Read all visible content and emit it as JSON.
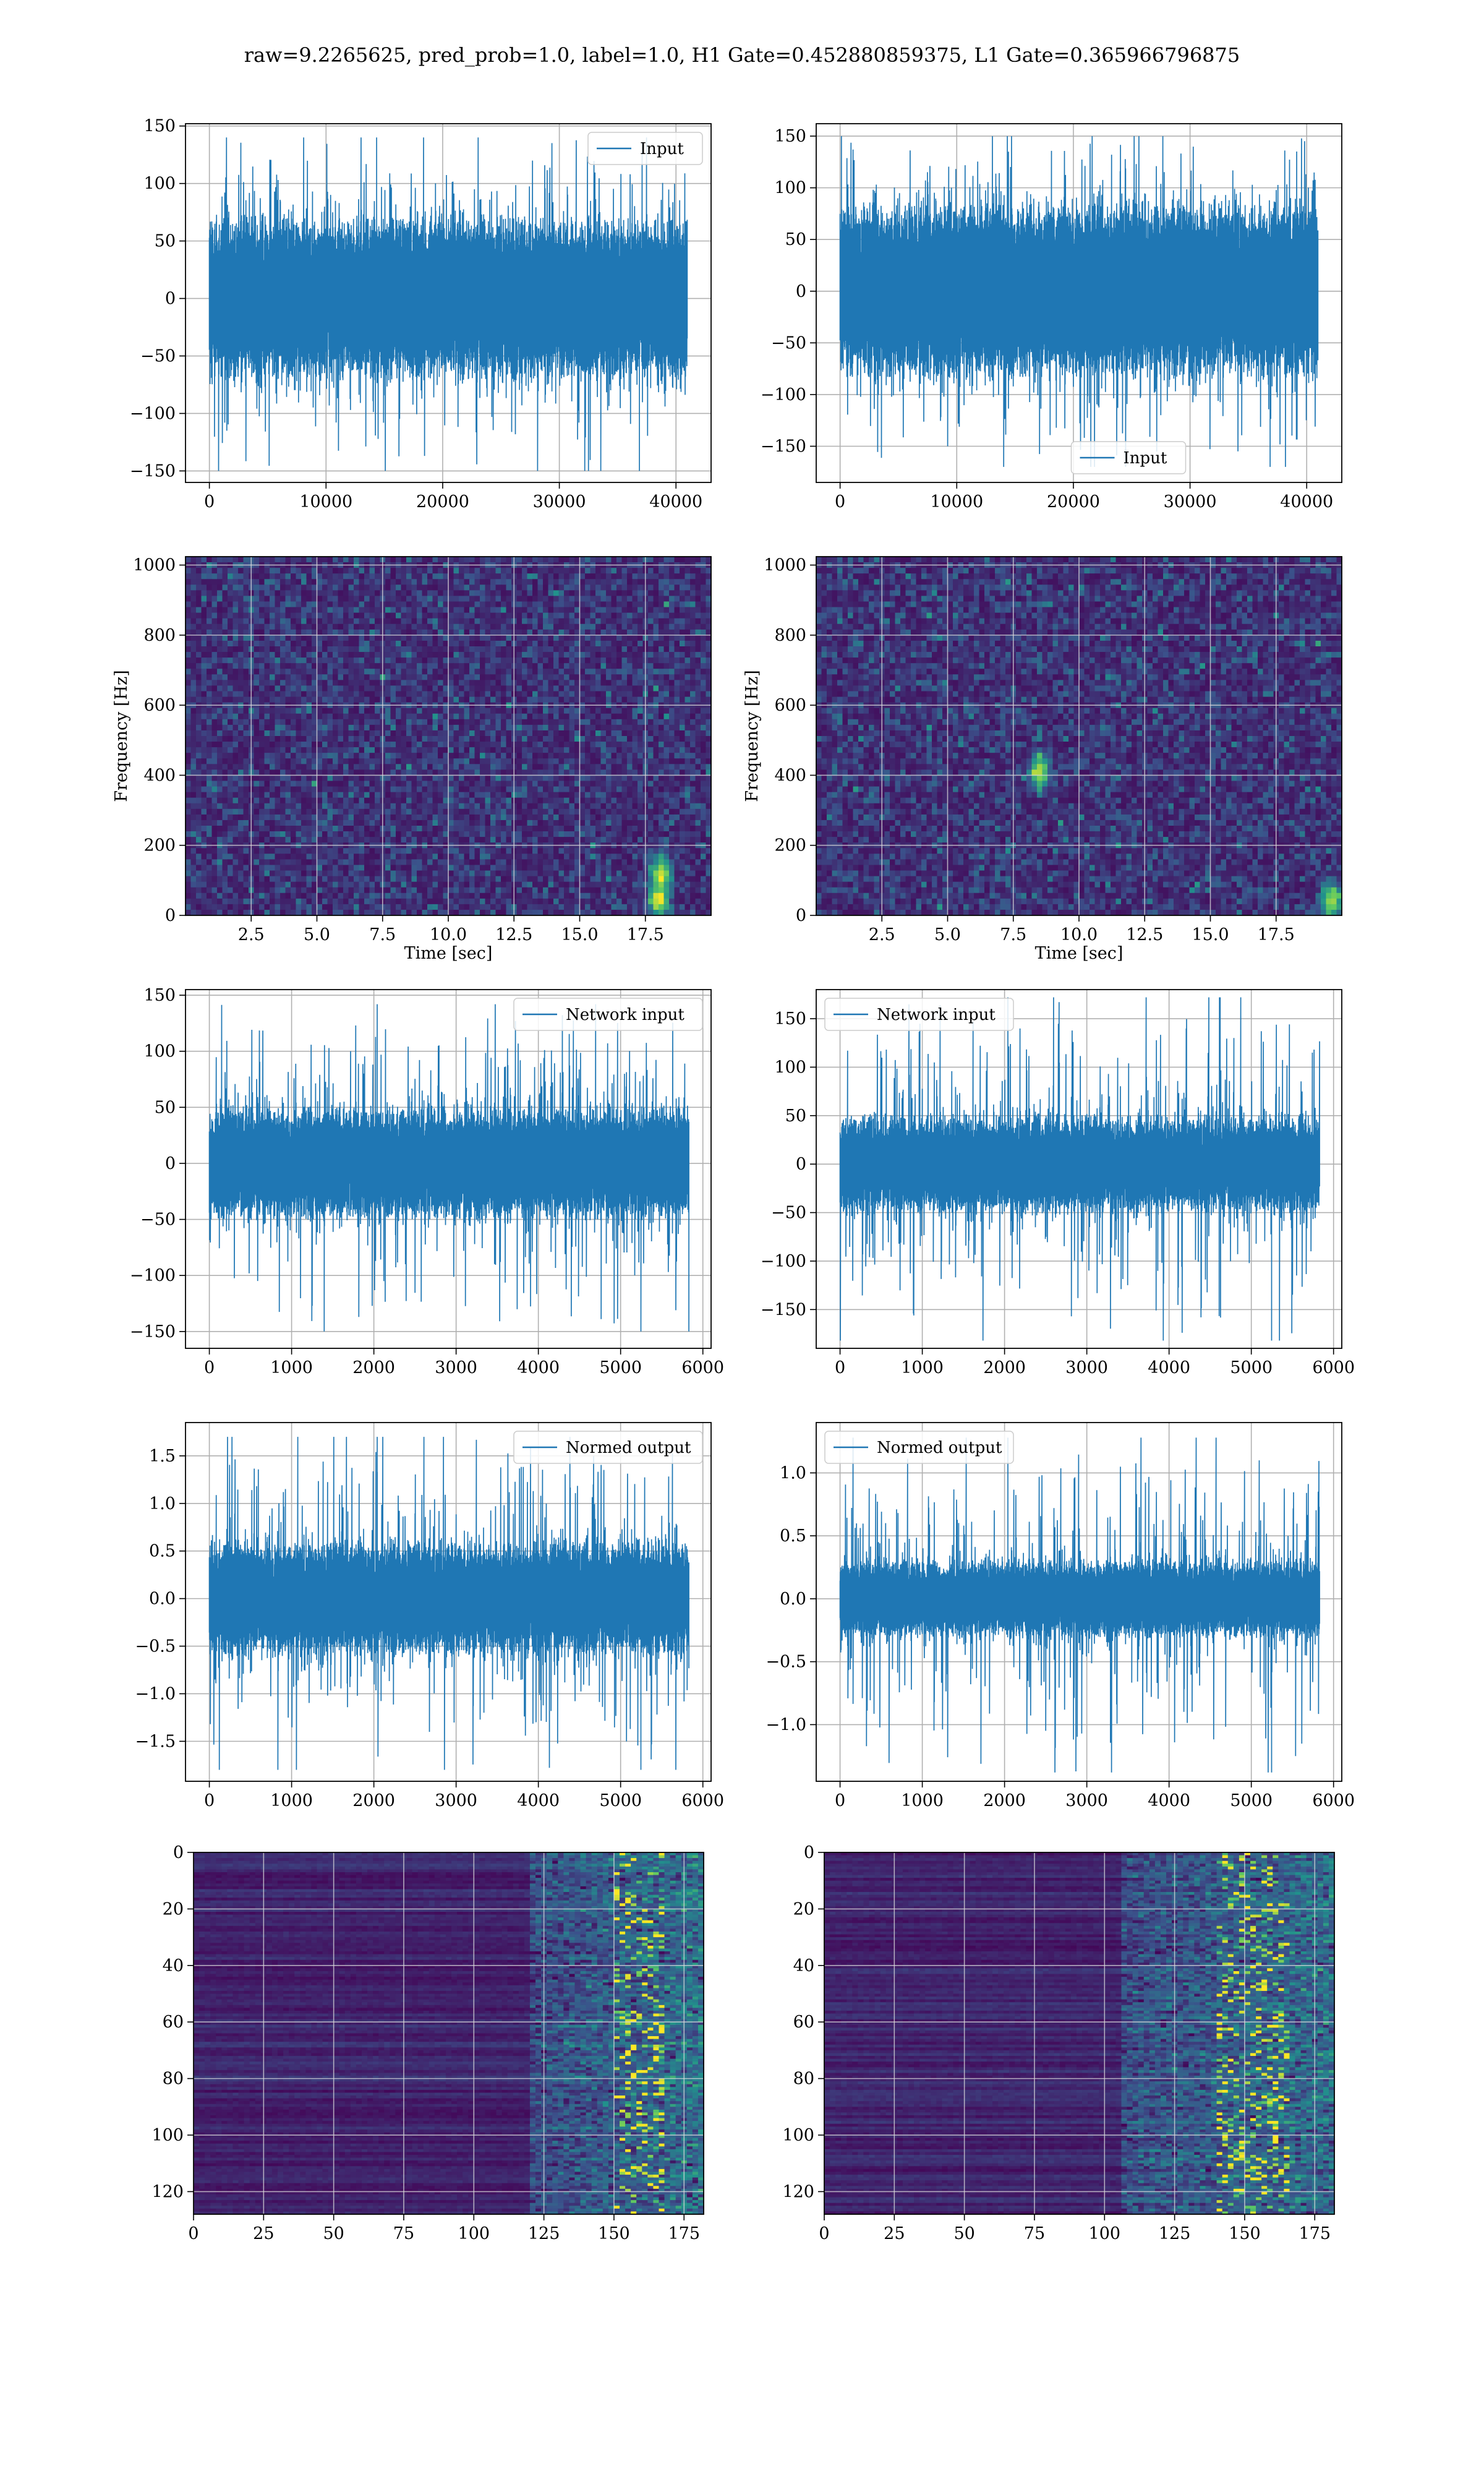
{
  "suptitle": "raw=9.2265625, pred_prob=1.0, label=1.0, H1 Gate=0.452880859375, L1 Gate=0.365966796875",
  "colors": {
    "line": "#1f77b4",
    "grid": "#b0b0b0",
    "viridis_low": "#440154",
    "viridis_mid": "#21918c",
    "viridis_high": "#fde725"
  },
  "chart_data": [
    {
      "id": "input-h1",
      "type": "line",
      "legend": "Input",
      "legend_loc": "upper-right",
      "xlim": [
        -2048,
        43008
      ],
      "ylim": [
        -160,
        152
      ],
      "xticks": [
        0,
        10000,
        20000,
        30000,
        40000
      ],
      "yticks": [
        -150,
        -100,
        -50,
        0,
        50,
        100,
        150
      ],
      "xtick_labels": [
        "0",
        "10000",
        "20000",
        "30000",
        "40000"
      ],
      "ytick_labels": [
        "−150",
        "−100",
        "−50",
        "0",
        "50",
        "100",
        "150"
      ],
      "signal": {
        "x_start": 0,
        "x_end": 40960,
        "core_amp": 50,
        "peak_max": 140,
        "peak_min": -150
      }
    },
    {
      "id": "input-l1",
      "type": "line",
      "legend": "Input",
      "legend_loc": "lower-center",
      "xlim": [
        -2048,
        43008
      ],
      "ylim": [
        -185,
        162
      ],
      "xticks": [
        0,
        10000,
        20000,
        30000,
        40000
      ],
      "yticks": [
        -150,
        -100,
        -50,
        0,
        50,
        100,
        150
      ],
      "xtick_labels": [
        "0",
        "10000",
        "20000",
        "30000",
        "40000"
      ],
      "ytick_labels": [
        "−150",
        "−100",
        "−50",
        "0",
        "50",
        "100",
        "150"
      ],
      "signal": {
        "x_start": 0,
        "x_end": 40960,
        "core_amp": 60,
        "peak_max": 150,
        "peak_min": -170
      }
    },
    {
      "id": "spec-h1",
      "type": "heatmap",
      "xlabel": "Time [sec]",
      "ylabel": "Frequency [Hz]",
      "xlim": [
        0,
        20
      ],
      "ylim": [
        0,
        1024
      ],
      "xticks": [
        2.5,
        5.0,
        7.5,
        10.0,
        12.5,
        15.0,
        17.5
      ],
      "yticks": [
        0,
        200,
        400,
        600,
        800,
        1000
      ],
      "xtick_labels": [
        "2.5",
        "5.0",
        "7.5",
        "10.0",
        "12.5",
        "15.0",
        "17.5"
      ],
      "ytick_labels": [
        "0",
        "200",
        "400",
        "600",
        "800",
        "1000"
      ],
      "hotspots": [
        {
          "x": 18.0,
          "y": 40
        },
        {
          "x": 18.1,
          "y": 120
        }
      ]
    },
    {
      "id": "spec-l1",
      "type": "heatmap",
      "xlabel": "Time [sec]",
      "ylabel": "Frequency [Hz]",
      "xlim": [
        0,
        20
      ],
      "ylim": [
        0,
        1024
      ],
      "xticks": [
        2.5,
        5.0,
        7.5,
        10.0,
        12.5,
        15.0,
        17.5
      ],
      "yticks": [
        0,
        200,
        400,
        600,
        800,
        1000
      ],
      "xtick_labels": [
        "2.5",
        "5.0",
        "7.5",
        "10.0",
        "12.5",
        "15.0",
        "17.5"
      ],
      "ytick_labels": [
        "0",
        "200",
        "400",
        "600",
        "800",
        "1000"
      ],
      "hotspots": [
        {
          "x": 19.6,
          "y": 40
        },
        {
          "x": 8.5,
          "y": 410
        }
      ]
    },
    {
      "id": "network-h1",
      "type": "line",
      "legend": "Network input",
      "legend_loc": "upper-right",
      "xlim": [
        -290,
        6100
      ],
      "ylim": [
        -165,
        155
      ],
      "xticks": [
        0,
        1000,
        2000,
        3000,
        4000,
        5000,
        6000
      ],
      "yticks": [
        -150,
        -100,
        -50,
        0,
        50,
        100,
        150
      ],
      "xtick_labels": [
        "0",
        "1000",
        "2000",
        "3000",
        "4000",
        "5000",
        "6000"
      ],
      "ytick_labels": [
        "−150",
        "−100",
        "−50",
        "0",
        "50",
        "100",
        "150"
      ],
      "signal": {
        "x_start": 0,
        "x_end": 5830,
        "core_amp": 35,
        "peak_max": 142,
        "peak_min": -150
      }
    },
    {
      "id": "network-l1",
      "type": "line",
      "legend": "Network input",
      "legend_loc": "upper-left",
      "xlim": [
        -290,
        6100
      ],
      "ylim": [
        -190,
        180
      ],
      "xticks": [
        0,
        1000,
        2000,
        3000,
        4000,
        5000,
        6000
      ],
      "yticks": [
        -150,
        -100,
        -50,
        0,
        50,
        100,
        150
      ],
      "xtick_labels": [
        "0",
        "1000",
        "2000",
        "3000",
        "4000",
        "5000",
        "6000"
      ],
      "ytick_labels": [
        "−150",
        "−100",
        "−50",
        "0",
        "50",
        "100",
        "150"
      ],
      "signal": {
        "x_start": 0,
        "x_end": 5830,
        "core_amp": 35,
        "peak_max": 172,
        "peak_min": -182
      }
    },
    {
      "id": "normed-h1",
      "type": "line",
      "legend": "Normed output",
      "legend_loc": "upper-right",
      "xlim": [
        -290,
        6100
      ],
      "ylim": [
        -1.92,
        1.85
      ],
      "xticks": [
        0,
        1000,
        2000,
        3000,
        4000,
        5000,
        6000
      ],
      "yticks": [
        -1.5,
        -1.0,
        -0.5,
        0.0,
        0.5,
        1.0,
        1.5
      ],
      "xtick_labels": [
        "0",
        "1000",
        "2000",
        "3000",
        "4000",
        "5000",
        "6000"
      ],
      "ytick_labels": [
        "−1.5",
        "−1.0",
        "−0.5",
        "0.0",
        "0.5",
        "1.0",
        "1.5"
      ],
      "signal": {
        "x_start": 0,
        "x_end": 5830,
        "core_amp": 0.42,
        "peak_max": 1.7,
        "peak_min": -1.8
      }
    },
    {
      "id": "normed-l1",
      "type": "line",
      "legend": "Normed output",
      "legend_loc": "upper-left",
      "xlim": [
        -290,
        6100
      ],
      "ylim": [
        -1.45,
        1.4
      ],
      "xticks": [
        0,
        1000,
        2000,
        3000,
        4000,
        5000,
        6000
      ],
      "yticks": [
        -1.0,
        -0.5,
        0.0,
        0.5,
        1.0
      ],
      "xtick_labels": [
        "0",
        "1000",
        "2000",
        "3000",
        "4000",
        "5000",
        "6000"
      ],
      "ytick_labels": [
        "−1.0",
        "−0.5",
        "0.0",
        "0.5",
        "1.0"
      ],
      "signal": {
        "x_start": 0,
        "x_end": 5830,
        "core_amp": 0.22,
        "peak_max": 1.28,
        "peak_min": -1.38
      }
    },
    {
      "id": "features-h1",
      "type": "heatmap",
      "xlim": [
        0,
        182
      ],
      "ylim": [
        128,
        0
      ],
      "xticks": [
        0,
        25,
        50,
        75,
        100,
        125,
        150,
        175
      ],
      "yticks": [
        0,
        20,
        40,
        60,
        80,
        100,
        120
      ],
      "xtick_labels": [
        "0",
        "25",
        "50",
        "75",
        "100",
        "125",
        "150",
        "175"
      ],
      "ytick_labels": [
        "0",
        "20",
        "40",
        "60",
        "80",
        "100",
        "120"
      ],
      "active_region": [
        120,
        175
      ],
      "hot_band": [
        150,
        168
      ]
    },
    {
      "id": "features-l1",
      "type": "heatmap",
      "xlim": [
        0,
        182
      ],
      "ylim": [
        128,
        0
      ],
      "xticks": [
        0,
        25,
        50,
        75,
        100,
        125,
        150,
        175
      ],
      "yticks": [
        0,
        20,
        40,
        60,
        80,
        100,
        120
      ],
      "xtick_labels": [
        "0",
        "25",
        "50",
        "75",
        "100",
        "125",
        "150",
        "175"
      ],
      "ytick_labels": [
        "0",
        "20",
        "40",
        "60",
        "80",
        "100",
        "120"
      ],
      "active_region": [
        105,
        182
      ],
      "hot_band": [
        140,
        165
      ]
    }
  ]
}
